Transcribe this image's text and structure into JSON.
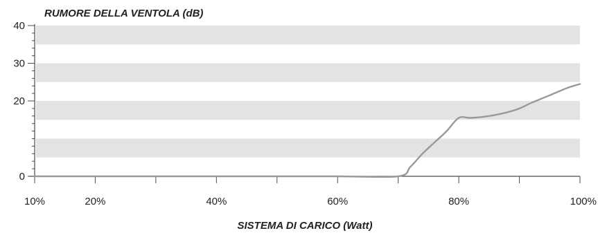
{
  "chart_data": {
    "type": "line",
    "title": "",
    "ylabel": "RUMORE DELLA VENTOLA (dB)",
    "xlabel": "SISTEMA DI CARICO (Watt)",
    "xlim": [
      10,
      100
    ],
    "ylim": [
      0,
      40
    ],
    "x_tick_values": [
      10,
      20,
      40,
      60,
      80,
      100
    ],
    "x_tick_labels": [
      "10%",
      "20%",
      "40%",
      "60%",
      "80%",
      "100%"
    ],
    "x_minor_ticks": [
      30,
      50,
      70,
      90
    ],
    "y_tick_values": [
      0,
      20,
      30,
      40
    ],
    "y_tick_labels": [
      "0",
      "20",
      "30",
      "40"
    ],
    "y_minor_step": 2,
    "y_bands": [
      [
        5,
        10
      ],
      [
        15,
        20
      ],
      [
        25,
        30
      ],
      [
        35,
        40
      ]
    ],
    "band_color": "#e3e3e3",
    "line_color": "#999999",
    "grid": false,
    "legend": "none",
    "series": [
      {
        "x": [
          10,
          20,
          30,
          40,
          50,
          60,
          70,
          72,
          74,
          76,
          78,
          80,
          82,
          85,
          88,
          90,
          92,
          95,
          98,
          100
        ],
        "y": [
          0,
          0,
          0,
          0,
          0,
          0,
          0,
          2.5,
          6,
          9,
          12,
          15.5,
          15.5,
          16,
          17,
          18,
          19.5,
          21.5,
          23.5,
          24.5
        ]
      }
    ]
  }
}
